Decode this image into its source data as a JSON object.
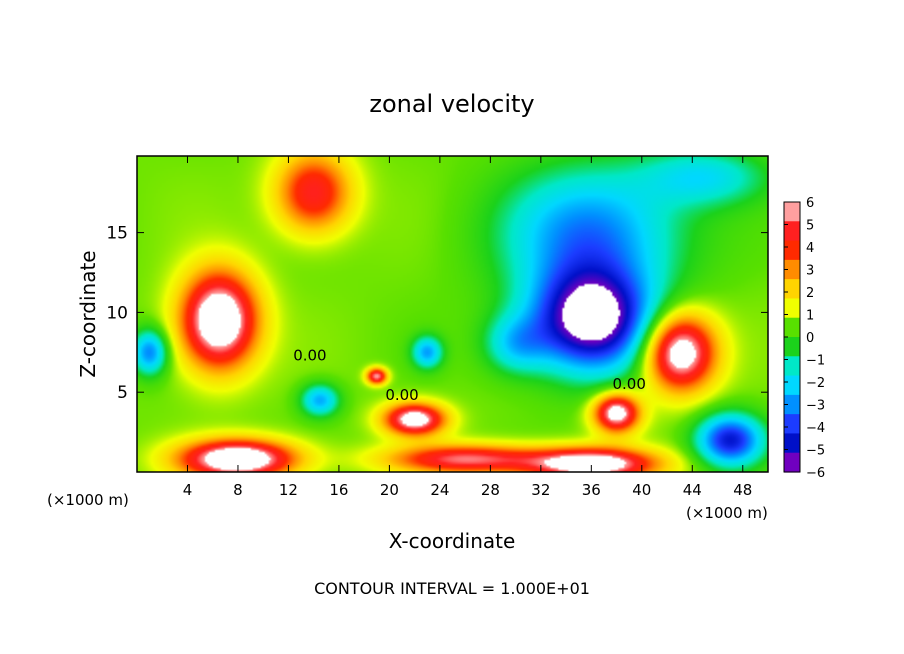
{
  "chart_data": {
    "type": "heatmap",
    "title": "zonal velocity",
    "xlabel": "X-coordinate",
    "ylabel": "Z-coordinate",
    "x_unit_left": "(×1000 m)",
    "x_unit_right": "(×1000 m)",
    "xlim": [
      0,
      50
    ],
    "ylim": [
      0,
      19.8
    ],
    "x_ticks": [
      4,
      8,
      12,
      16,
      20,
      24,
      28,
      32,
      36,
      40,
      44,
      48
    ],
    "x_tick_labels": [
      "4",
      "8",
      "12",
      "16",
      "20",
      "24",
      "28",
      "32",
      "36",
      "40",
      "44",
      "48"
    ],
    "y_ticks": [
      5,
      10,
      15
    ],
    "y_tick_labels": [
      "5",
      "10",
      "15"
    ],
    "colorbar": {
      "min": -6,
      "max": 6,
      "levels": [
        6,
        5,
        4,
        3,
        2,
        1,
        0,
        -1,
        -2,
        -3,
        -4,
        -5,
        -6
      ],
      "labels": [
        "6",
        "5",
        "4",
        "3",
        "2",
        "1",
        "0",
        "−1",
        "−2",
        "−3",
        "−4",
        "−5",
        "−6"
      ],
      "colors": [
        "#ff9f9f",
        "#ff2020",
        "#ff2a00",
        "#ff8c00",
        "#ffd400",
        "#f0ff00",
        "#58e000",
        "#1bd21b",
        "#00e8c8",
        "#00d8ff",
        "#0090ff",
        "#1c3cff",
        "#0010c8",
        "#7000c0"
      ]
    },
    "contour_labels": [
      {
        "text": "0.00",
        "x": 13.7,
        "y": 7.0
      },
      {
        "text": "0.00",
        "x": 21.0,
        "y": 4.5
      },
      {
        "text": "0.00",
        "x": 39.0,
        "y": 5.2
      }
    ],
    "footnote": "CONTOUR INTERVAL = 1.000E+01",
    "features": [
      {
        "kind": "max",
        "x": 6.5,
        "y": 9.5,
        "value": 7.5,
        "rx": 3.0,
        "ry": 3.0
      },
      {
        "kind": "max",
        "x": 14.0,
        "y": 17.5,
        "value": 4.5,
        "rx": 3.0,
        "ry": 2.5
      },
      {
        "kind": "max",
        "x": 22.0,
        "y": 3.3,
        "value": 6.5,
        "rx": 2.4,
        "ry": 1.0
      },
      {
        "kind": "max",
        "x": 19.0,
        "y": 6.0,
        "value": 5.5,
        "rx": 0.8,
        "ry": 0.5
      },
      {
        "kind": "max",
        "x": 38.0,
        "y": 3.7,
        "value": 6.5,
        "rx": 1.8,
        "ry": 1.2
      },
      {
        "kind": "max",
        "x": 43.0,
        "y": 7.5,
        "value": 7.0,
        "rx": 2.8,
        "ry": 2.4
      },
      {
        "kind": "max",
        "x": 8.0,
        "y": 0.8,
        "value": 7.5,
        "rx": 4.5,
        "ry": 1.2
      },
      {
        "kind": "max",
        "x": 36.0,
        "y": 0.5,
        "value": 7.0,
        "rx": 5.0,
        "ry": 1.0
      },
      {
        "kind": "max",
        "x": 26.0,
        "y": 0.8,
        "value": 5.0,
        "rx": 6.0,
        "ry": 0.9
      },
      {
        "kind": "min",
        "x": 36.0,
        "y": 9.5,
        "value": -7.5,
        "rx": 4.8,
        "ry": 3.2
      },
      {
        "kind": "min",
        "x": 36.0,
        "y": 15.0,
        "value": -4.0,
        "rx": 7.0,
        "ry": 4.0
      },
      {
        "kind": "min",
        "x": 1.0,
        "y": 7.5,
        "value": -4.0,
        "rx": 1.4,
        "ry": 1.4
      },
      {
        "kind": "min",
        "x": 14.5,
        "y": 4.5,
        "value": -3.5,
        "rx": 1.5,
        "ry": 1.0
      },
      {
        "kind": "min",
        "x": 23.0,
        "y": 7.5,
        "value": -3.5,
        "rx": 1.2,
        "ry": 1.0
      },
      {
        "kind": "min",
        "x": 47.0,
        "y": 2.0,
        "value": -5.5,
        "rx": 2.6,
        "ry": 1.6
      },
      {
        "kind": "min",
        "x": 45.0,
        "y": 18.5,
        "value": -2.5,
        "rx": 5.0,
        "ry": 1.8
      },
      {
        "kind": "min",
        "x": 30.0,
        "y": 8.0,
        "value": -2.5,
        "rx": 2.5,
        "ry": 1.8
      }
    ]
  }
}
